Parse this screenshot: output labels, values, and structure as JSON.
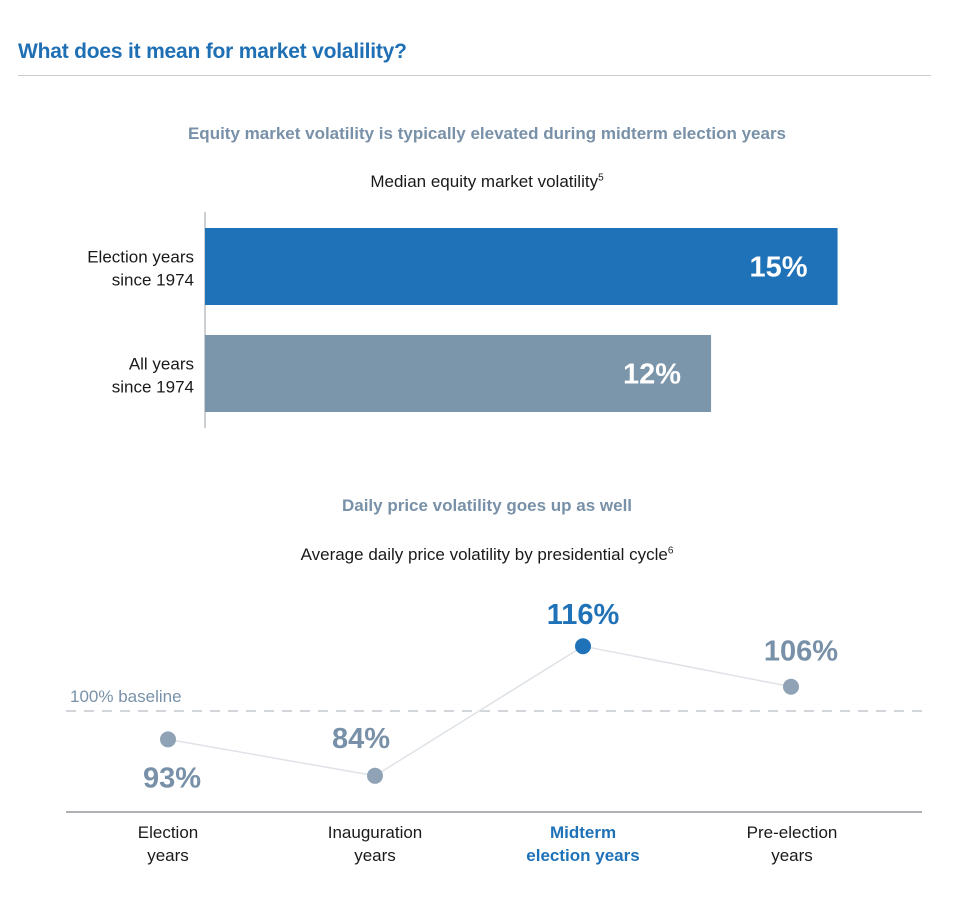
{
  "header": {
    "title": "What does it mean for market volalility?"
  },
  "colors": {
    "accent": "#1f6fb5",
    "muted": "#7891a8",
    "bar_highlight": "#1f72b8",
    "bar_other": "#7b95ab",
    "point_muted": "#8fa2b6"
  },
  "chart_data": [
    {
      "type": "bar",
      "orientation": "horizontal",
      "title": "Equity market volatility is typically elevated during midterm election years",
      "subtitle": "Median equity market volatility",
      "footnote_mark": "5",
      "categories": [
        [
          "Election years",
          "since 1974"
        ],
        [
          "All years",
          "since 1974"
        ]
      ],
      "values": [
        15,
        12
      ],
      "value_labels": [
        "15%",
        "12%"
      ],
      "highlight_index": 0,
      "xlim": [
        0,
        15.2
      ]
    },
    {
      "type": "line",
      "title": "Daily price volatility goes up as well",
      "subtitle": "Average daily price volatility by presidential cycle",
      "footnote_mark": "6",
      "categories": [
        [
          "Election",
          "years"
        ],
        [
          "Inauguration",
          "years"
        ],
        [
          "Midterm",
          "election years"
        ],
        [
          "Pre-election",
          "years"
        ]
      ],
      "values": [
        93,
        84,
        116,
        106
      ],
      "value_labels": [
        "93%",
        "84%",
        "116%",
        "106%"
      ],
      "highlight_index": 2,
      "baseline": 100,
      "baseline_label": "100% baseline",
      "ylim": [
        80,
        120
      ]
    }
  ]
}
